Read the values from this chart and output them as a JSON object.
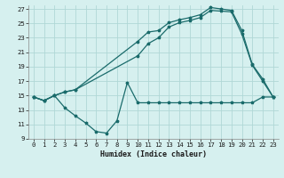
{
  "title": "",
  "xlabel": "Humidex (Indice chaleur)",
  "ylabel": "",
  "bg_color": "#d6f0ef",
  "grid_color": "#b0d8d6",
  "line_color": "#1a6b6b",
  "line1_x": [
    0,
    1,
    2,
    3,
    4,
    10,
    11,
    12,
    13,
    14,
    15,
    16,
    17,
    18,
    19,
    20,
    21,
    22,
    23
  ],
  "line1_y": [
    14.8,
    14.3,
    15.0,
    15.5,
    15.8,
    22.5,
    23.8,
    24.0,
    25.1,
    25.5,
    25.8,
    26.2,
    27.2,
    27.0,
    26.8,
    24.0,
    19.3,
    17.3,
    14.8
  ],
  "line2_x": [
    0,
    1,
    2,
    3,
    4,
    10,
    11,
    12,
    13,
    14,
    15,
    16,
    17,
    18,
    19,
    20,
    21,
    22,
    23
  ],
  "line2_y": [
    14.8,
    14.3,
    15.0,
    15.5,
    15.8,
    20.5,
    22.2,
    23.0,
    24.5,
    25.1,
    25.4,
    25.8,
    26.8,
    26.7,
    26.6,
    23.5,
    19.2,
    17.0,
    14.8
  ],
  "line3_x": [
    0,
    1,
    2,
    3,
    4,
    5,
    6,
    7,
    8,
    9,
    10,
    11,
    12,
    13,
    14,
    15,
    16,
    17,
    18,
    19,
    20,
    21,
    22,
    23
  ],
  "line3_y": [
    14.8,
    14.3,
    15.0,
    13.3,
    12.2,
    11.2,
    10.0,
    9.8,
    11.5,
    16.8,
    14.0,
    14.0,
    14.0,
    14.0,
    14.0,
    14.0,
    14.0,
    14.0,
    14.0,
    14.0,
    14.0,
    14.0,
    14.8,
    14.8
  ],
  "xlim": [
    -0.5,
    23.5
  ],
  "ylim": [
    9,
    27.5
  ],
  "yticks": [
    9,
    11,
    13,
    15,
    17,
    19,
    21,
    23,
    25,
    27
  ],
  "xticks": [
    0,
    1,
    2,
    3,
    4,
    5,
    6,
    7,
    8,
    9,
    10,
    11,
    12,
    13,
    14,
    15,
    16,
    17,
    18,
    19,
    20,
    21,
    22,
    23
  ],
  "xlabel_fontsize": 6.0,
  "tick_fontsize": 5.2,
  "linewidth": 0.9,
  "markersize": 2.5
}
